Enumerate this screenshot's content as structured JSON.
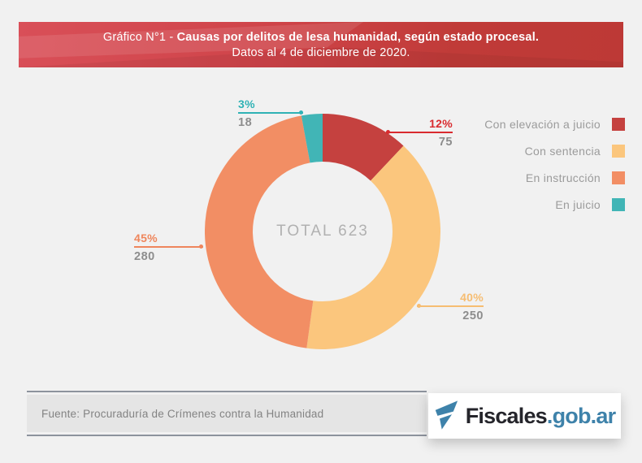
{
  "header": {
    "title_prefix": "Gráfico N°1 - ",
    "title_bold": "Causas por delitos de lesa humanidad, según estado procesal.",
    "subtitle": "Datos al 4 de diciembre de 2020."
  },
  "chart_data": {
    "type": "pie",
    "subtype": "donut",
    "title": "Causas por delitos de lesa humanidad, según estado procesal. Datos al 4 de diciembre de 2020.",
    "center_label": "TOTAL 623",
    "total": 623,
    "start_angle_deg": 0,
    "direction": "clockwise",
    "legend_position": "right",
    "segments": [
      {
        "label": "Con elevación a juicio",
        "value": 75,
        "percent": "12%",
        "color": "#c5413f",
        "label_color": "#d92b2f"
      },
      {
        "label": "Con sentencia",
        "value": 250,
        "percent": "40%",
        "color": "#fbc67d",
        "label_color": "#f6bd72"
      },
      {
        "label": "En instrucción",
        "value": 280,
        "percent": "45%",
        "color": "#f28e64",
        "label_color": "#ef865c"
      },
      {
        "label": "En juicio",
        "value": 18,
        "percent": "3%",
        "color": "#41b5b6",
        "label_color": "#2fb2b5"
      }
    ]
  },
  "footer": {
    "source": "Fuente: Procuraduría de Crímenes contra la Humanidad"
  },
  "logo": {
    "text_dark": "Fiscales",
    "text_accent": ".gob.ar"
  },
  "theme": {
    "background": "#f1f1f1",
    "banner_red_left": "#d94f58",
    "banner_red_right": "#bd3936",
    "value_text": "#8d8d8d",
    "legend_text": "#9b9b9b",
    "center_text": "#b1b1b1",
    "logo_blue": "#3e82aa",
    "source_box": "#e5e5e5"
  }
}
